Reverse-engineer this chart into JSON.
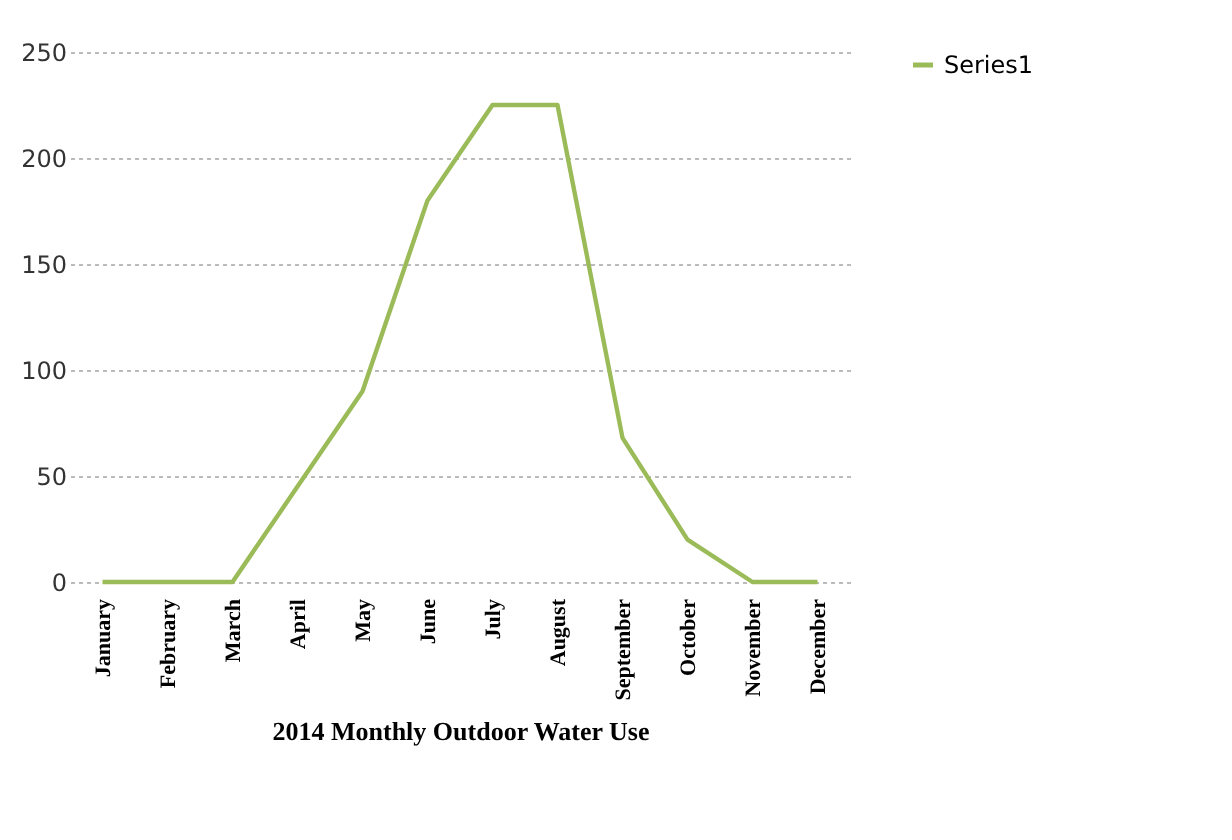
{
  "chart_data": {
    "type": "line",
    "xlabel": "2014 Monthly Outdoor Water Use",
    "categories": [
      "January",
      "February",
      "March",
      "April",
      "May",
      "June",
      "July",
      "August",
      "September",
      "October",
      "November",
      "December"
    ],
    "series": [
      {
        "name": "Series1",
        "color": "#9bbb59",
        "values": [
          0,
          0,
          0,
          45,
          90,
          180,
          225,
          225,
          68,
          20,
          0,
          0
        ]
      }
    ],
    "ylim": [
      0,
      250
    ],
    "yticks": [
      0,
      50,
      100,
      150,
      200,
      250
    ],
    "grid": "y",
    "legend": "right",
    "marker": "none"
  }
}
